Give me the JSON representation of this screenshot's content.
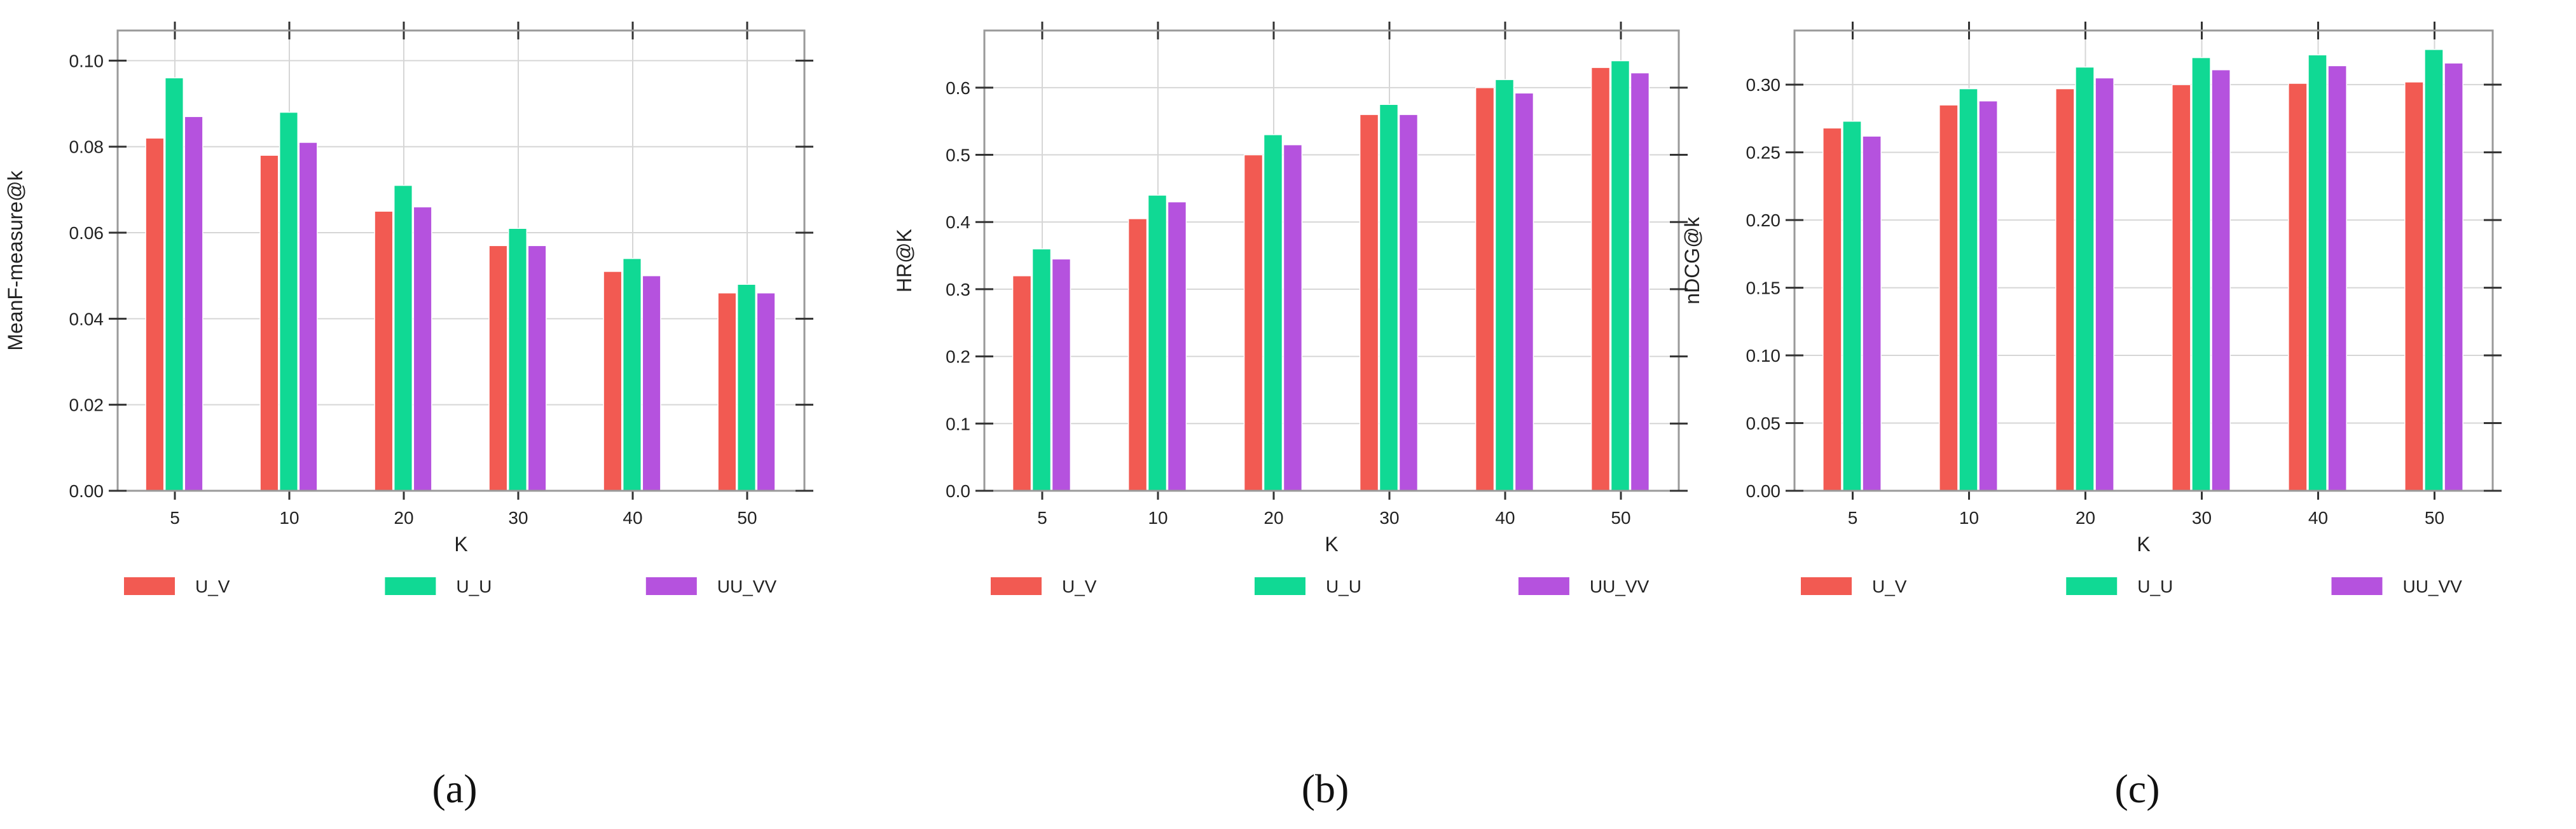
{
  "chart_data": [
    {
      "type": "bar",
      "panel_label": "(a)",
      "categories": [
        "5",
        "10",
        "20",
        "30",
        "40",
        "50"
      ],
      "xlabel": "K",
      "ylabel": "MeanF-measure@k",
      "ylim": [
        0,
        0.107
      ],
      "yticks": [
        0.0,
        0.02,
        0.04,
        0.06,
        0.08,
        0.1
      ],
      "ytick_labels": [
        "0.00",
        "0.02",
        "0.04",
        "0.06",
        "0.08",
        "0.10"
      ],
      "grid": true,
      "legend_position": "bottom",
      "series": [
        {
          "name": "U_V",
          "color": "#f25a52",
          "values": [
            0.082,
            0.078,
            0.065,
            0.057,
            0.051,
            0.046
          ]
        },
        {
          "name": "U_U",
          "color": "#10d994",
          "values": [
            0.096,
            0.088,
            0.071,
            0.061,
            0.054,
            0.048
          ]
        },
        {
          "name": "UU_VV",
          "color": "#b552de",
          "values": [
            0.087,
            0.081,
            0.066,
            0.057,
            0.05,
            0.046
          ]
        }
      ]
    },
    {
      "type": "bar",
      "panel_label": "(b)",
      "categories": [
        "5",
        "10",
        "20",
        "30",
        "40",
        "50"
      ],
      "xlabel": "K",
      "ylabel": "HR@K",
      "ylim": [
        0,
        0.685
      ],
      "yticks": [
        0.0,
        0.1,
        0.2,
        0.3,
        0.4,
        0.5,
        0.6
      ],
      "ytick_labels": [
        "0.0",
        "0.1",
        "0.2",
        "0.3",
        "0.4",
        "0.5",
        "0.6"
      ],
      "grid": true,
      "legend_position": "bottom",
      "series": [
        {
          "name": "U_V",
          "color": "#f25a52",
          "values": [
            0.32,
            0.405,
            0.5,
            0.56,
            0.6,
            0.63
          ]
        },
        {
          "name": "U_U",
          "color": "#10d994",
          "values": [
            0.36,
            0.44,
            0.53,
            0.575,
            0.612,
            0.64
          ]
        },
        {
          "name": "UU_VV",
          "color": "#b552de",
          "values": [
            0.345,
            0.43,
            0.515,
            0.56,
            0.592,
            0.622
          ]
        }
      ]
    },
    {
      "type": "bar",
      "panel_label": "(c)",
      "categories": [
        "5",
        "10",
        "20",
        "30",
        "40",
        "50"
      ],
      "xlabel": "K",
      "ylabel": "nDCG@k",
      "ylim": [
        0,
        0.34
      ],
      "yticks": [
        0.0,
        0.05,
        0.1,
        0.15,
        0.2,
        0.25,
        0.3
      ],
      "ytick_labels": [
        "0.00",
        "0.05",
        "0.10",
        "0.15",
        "0.20",
        "0.25",
        "0.30"
      ],
      "grid": true,
      "legend_position": "bottom",
      "series": [
        {
          "name": "U_V",
          "color": "#f25a52",
          "values": [
            0.268,
            0.285,
            0.297,
            0.3,
            0.301,
            0.302
          ]
        },
        {
          "name": "U_U",
          "color": "#10d994",
          "values": [
            0.273,
            0.297,
            0.313,
            0.32,
            0.322,
            0.326
          ]
        },
        {
          "name": "UU_VV",
          "color": "#b552de",
          "values": [
            0.262,
            0.288,
            0.305,
            0.311,
            0.314,
            0.316
          ]
        }
      ]
    }
  ]
}
